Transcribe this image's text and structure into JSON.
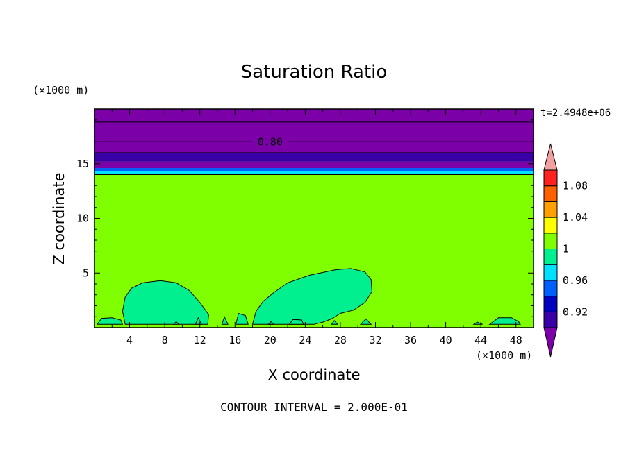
{
  "chart_data": {
    "type": "contour",
    "title": "Saturation Ratio",
    "xlabel": "X coordinate",
    "ylabel": "Z coordinate",
    "x_unit": "(×1000 m)",
    "y_unit": "(×1000 m)",
    "time_label": "t=2.4948e+06",
    "footer": "CONTOUR INTERVAL = 2.000E-01",
    "xlim": [
      0,
      50
    ],
    "ylim": [
      0,
      20
    ],
    "x_ticks": [
      "4",
      "8",
      "12",
      "16",
      "20",
      "24",
      "28",
      "32",
      "36",
      "40",
      "44",
      "48"
    ],
    "x_tick_values": [
      4,
      8,
      12,
      16,
      20,
      24,
      28,
      32,
      36,
      40,
      44,
      48
    ],
    "y_ticks": [
      "5",
      "10",
      "15"
    ],
    "y_tick_values": [
      5,
      10,
      15
    ],
    "colorbar": {
      "labels": [
        "0.92",
        "0.96",
        "1",
        "1.04",
        "1.08"
      ],
      "label_values": [
        0.92,
        0.96,
        1.0,
        1.04,
        1.08
      ],
      "colors": [
        "#7b00a8",
        "#3a00a8",
        "#0000c0",
        "#0060ff",
        "#00e0ff",
        "#00f090",
        "#80ff00",
        "#ffff00",
        "#ffa000",
        "#ff6000",
        "#ff2020",
        "#f0a0a0"
      ],
      "over_color": "#f0a0a0",
      "under_color": "#7b00a8"
    },
    "bands": [
      {
        "z0": 14.0,
        "z1": 14.3,
        "color": "#00e0ff"
      },
      {
        "z0": 14.3,
        "z1": 14.6,
        "color": "#0060ff"
      },
      {
        "z0": 14.6,
        "z1": 15.2,
        "color": "#7b00a8"
      },
      {
        "z0": 15.2,
        "z1": 16.0,
        "color": "#3a00a8"
      },
      {
        "z0": 16.0,
        "z1": 20.0,
        "color": "#7b00a8"
      }
    ],
    "background_color": "#80ff00",
    "contour_lines": [
      {
        "z": 17.0,
        "label": "0.80"
      },
      {
        "z": 18.8,
        "label": ""
      },
      {
        "z": 16.0,
        "label": ""
      },
      {
        "z": 14.0,
        "label": ""
      }
    ],
    "regions": [
      {
        "color": "#00f090",
        "points": [
          [
            3.5,
            0.3
          ],
          [
            3.2,
            1.5
          ],
          [
            3.4,
            2.4
          ],
          [
            3.5,
            2.8
          ],
          [
            4.2,
            3.6
          ],
          [
            5.5,
            4.1
          ],
          [
            7.5,
            4.3
          ],
          [
            9.3,
            4.1
          ],
          [
            10.8,
            3.4
          ],
          [
            12.0,
            2.3
          ],
          [
            13.0,
            1.2
          ],
          [
            12.9,
            0.3
          ]
        ]
      },
      {
        "color": "#00f090",
        "points": [
          [
            18.0,
            0.3
          ],
          [
            18.4,
            1.5
          ],
          [
            19.2,
            2.4
          ],
          [
            20.4,
            3.2
          ],
          [
            22.0,
            4.1
          ],
          [
            24.5,
            4.8
          ],
          [
            27.5,
            5.3
          ],
          [
            29.2,
            5.4
          ],
          [
            30.8,
            5.1
          ],
          [
            31.5,
            4.4
          ],
          [
            31.6,
            3.3
          ],
          [
            30.8,
            2.3
          ],
          [
            29.5,
            1.6
          ],
          [
            28.0,
            1.3
          ],
          [
            27.0,
            0.8
          ],
          [
            26.0,
            0.5
          ],
          [
            25.0,
            0.3
          ]
        ]
      },
      {
        "color": "#00f090",
        "points": [
          [
            0.3,
            0.3
          ],
          [
            0.8,
            0.85
          ],
          [
            2.0,
            0.9
          ],
          [
            3.0,
            0.7
          ],
          [
            3.2,
            0.3
          ]
        ]
      },
      {
        "color": "#00f090",
        "points": [
          [
            14.5,
            0.3
          ],
          [
            14.8,
            1.0
          ],
          [
            15.2,
            0.3
          ]
        ]
      },
      {
        "color": "#00f090",
        "points": [
          [
            16.1,
            0.3
          ],
          [
            16.4,
            1.3
          ],
          [
            17.2,
            1.1
          ],
          [
            17.5,
            0.3
          ]
        ]
      },
      {
        "color": "#00f090",
        "points": [
          [
            11.5,
            0.3
          ],
          [
            11.8,
            0.9
          ],
          [
            12.2,
            0.3
          ]
        ]
      },
      {
        "color": "#00f090",
        "points": [
          [
            22.2,
            0.3
          ],
          [
            22.6,
            0.75
          ],
          [
            23.6,
            0.7
          ],
          [
            23.8,
            0.3
          ]
        ]
      },
      {
        "color": "#00f090",
        "points": [
          [
            27.0,
            0.3
          ],
          [
            27.3,
            0.65
          ],
          [
            27.7,
            0.3
          ]
        ]
      },
      {
        "color": "#00f090",
        "points": [
          [
            30.3,
            0.3
          ],
          [
            30.9,
            0.8
          ],
          [
            31.5,
            0.3
          ]
        ]
      },
      {
        "color": "#00f090",
        "points": [
          [
            45.0,
            0.3
          ],
          [
            46.0,
            0.9
          ],
          [
            47.5,
            0.9
          ],
          [
            48.3,
            0.55
          ],
          [
            48.5,
            0.3
          ]
        ]
      },
      {
        "color": "#00f090",
        "points": [
          [
            43.2,
            0.3
          ],
          [
            43.6,
            0.5
          ],
          [
            44.2,
            0.3
          ]
        ]
      },
      {
        "color": "#00f090",
        "points": [
          [
            9.0,
            0.3
          ],
          [
            9.3,
            0.55
          ],
          [
            9.6,
            0.3
          ]
        ]
      },
      {
        "color": "#00f090",
        "points": [
          [
            19.8,
            0.3
          ],
          [
            20.1,
            0.55
          ],
          [
            20.4,
            0.3
          ]
        ]
      }
    ]
  }
}
